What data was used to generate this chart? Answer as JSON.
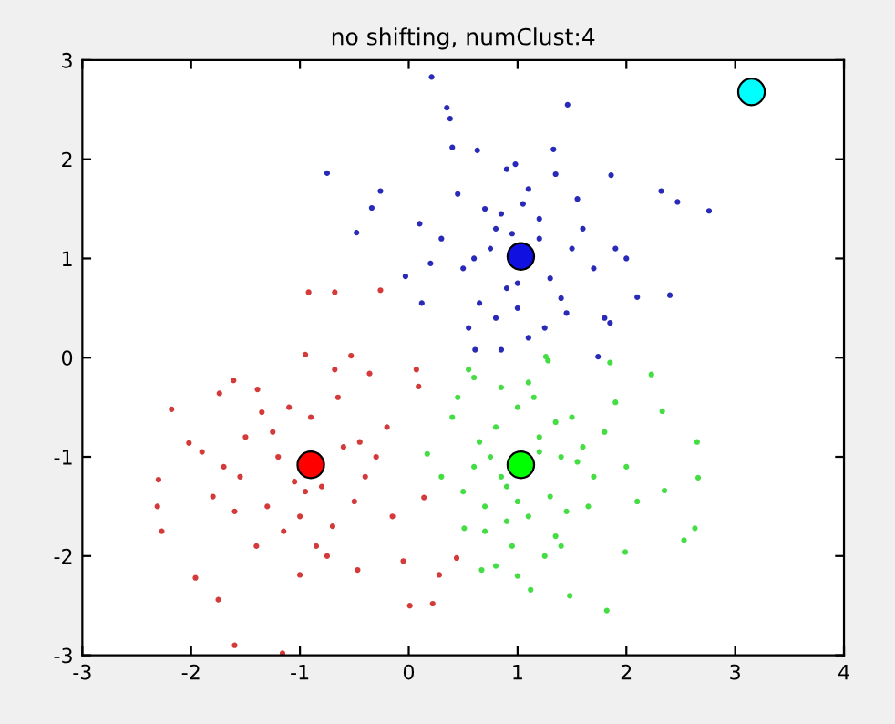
{
  "chart_data": {
    "type": "scatter",
    "title": "no shifting, numClust:4",
    "xlim": [
      -3,
      4
    ],
    "ylim": [
      -3,
      3
    ],
    "xticks": [
      -3,
      -2,
      -1,
      0,
      1,
      2,
      3,
      4
    ],
    "yticks": [
      -3,
      -2,
      -1,
      0,
      1,
      2,
      3
    ],
    "grid": false,
    "legend": false,
    "marker": "circle",
    "series": [
      {
        "color": "#2a2ab8",
        "x": [
          0.21,
          1.46,
          -0.75,
          0.35,
          0.38,
          2.76,
          2.47,
          2.32,
          2.4,
          -0.48,
          -0.34,
          -0.03,
          0.12,
          0.61,
          0.85,
          1.74,
          2.1,
          1.86,
          1.33,
          0.4,
          0.63,
          0.98,
          -0.26,
          1.85,
          0.8,
          1.2,
          1.5,
          0.6,
          0.9,
          1.1,
          1.3,
          0.7,
          1.6,
          0.5,
          1.0,
          1.4,
          0.3,
          1.7,
          0.9,
          1.2,
          0.8,
          1.05,
          0.45,
          1.55,
          1.9,
          0.2,
          0.75,
          1.25,
          1.0,
          1.35,
          0.65,
          0.95,
          1.45,
          0.55,
          1.8,
          0.1,
          2.0,
          1.1,
          0.85
        ],
        "values": [
          2.83,
          2.55,
          1.86,
          2.52,
          2.41,
          1.48,
          1.57,
          1.68,
          0.63,
          1.26,
          1.51,
          0.82,
          0.55,
          0.08,
          0.08,
          0.01,
          0.61,
          1.84,
          2.1,
          2.12,
          2.09,
          1.95,
          1.68,
          0.35,
          1.3,
          1.4,
          1.1,
          1.0,
          0.7,
          1.7,
          0.8,
          1.5,
          1.3,
          0.9,
          0.5,
          0.6,
          1.2,
          0.9,
          1.9,
          1.2,
          0.4,
          1.55,
          1.65,
          1.6,
          1.1,
          0.95,
          1.1,
          0.3,
          0.75,
          1.85,
          0.55,
          1.25,
          0.45,
          0.3,
          0.4,
          1.35,
          1.0,
          0.2,
          1.45
        ]
      },
      {
        "color": "#d43a3a",
        "x": [
          -2.3,
          -2.27,
          -2.31,
          -2.18,
          -2.02,
          -1.96,
          -1.75,
          -1.6,
          -1.16,
          -1.0,
          -1.61,
          -1.74,
          -1.39,
          -0.95,
          -0.68,
          -0.36,
          -0.53,
          -0.47,
          -0.05,
          0.01,
          0.22,
          0.07,
          0.09,
          0.14,
          0.44,
          0.28,
          -0.92,
          -0.68,
          -0.26,
          -1.2,
          -0.8,
          -1.5,
          -0.6,
          -1.0,
          -1.3,
          -0.4,
          -1.7,
          -0.9,
          -1.1,
          -0.7,
          -1.4,
          -0.2,
          -1.8,
          -0.5,
          -1.25,
          -0.85,
          -1.55,
          -0.3,
          -1.05,
          -0.65,
          -1.35,
          -0.15,
          -1.9,
          -0.75,
          -1.15,
          -0.45,
          -1.6,
          -0.95
        ],
        "values": [
          -1.23,
          -1.75,
          -1.5,
          -0.52,
          -0.86,
          -2.22,
          -2.44,
          -2.9,
          -2.98,
          -2.19,
          -0.23,
          -0.36,
          -0.32,
          0.03,
          -0.12,
          -0.16,
          0.02,
          -2.14,
          -2.05,
          -2.5,
          -2.48,
          -0.12,
          -0.29,
          -1.41,
          -2.02,
          -2.19,
          0.66,
          0.66,
          0.68,
          -1.0,
          -1.3,
          -0.8,
          -0.9,
          -1.6,
          -1.5,
          -1.2,
          -1.1,
          -0.6,
          -0.5,
          -1.7,
          -1.9,
          -0.7,
          -1.4,
          -1.45,
          -0.75,
          -1.9,
          -1.2,
          -1.0,
          -1.25,
          -0.4,
          -0.55,
          -1.6,
          -0.95,
          -2.0,
          -1.75,
          -0.85,
          -1.55,
          -1.35
        ]
      },
      {
        "color": "#44dd44",
        "x": [
          2.65,
          2.66,
          2.63,
          2.53,
          2.35,
          2.33,
          2.23,
          1.82,
          1.48,
          1.12,
          0.67,
          0.51,
          0.17,
          0.55,
          1.28,
          1.85,
          1.99,
          1.26,
          1.0,
          0.8,
          1.2,
          1.4,
          0.6,
          0.9,
          1.6,
          0.7,
          1.1,
          1.3,
          0.4,
          1.7,
          0.85,
          1.15,
          0.95,
          1.5,
          0.75,
          1.35,
          0.5,
          1.8,
          0.65,
          1.25,
          2.0,
          0.3,
          1.45,
          0.9,
          1.1,
          1.55,
          0.7,
          1.0,
          1.9,
          0.45,
          1.2,
          0.8,
          1.65,
          1.35,
          2.1,
          0.6,
          1.0,
          1.4,
          0.85
        ],
        "values": [
          -0.85,
          -1.21,
          -1.72,
          -1.84,
          -1.34,
          -0.54,
          -0.17,
          -2.55,
          -2.4,
          -2.34,
          -2.14,
          -1.72,
          -0.97,
          -0.12,
          -0.03,
          -0.05,
          -1.96,
          0.01,
          -0.5,
          -0.7,
          -0.8,
          -1.0,
          -1.1,
          -1.3,
          -0.9,
          -1.5,
          -1.6,
          -1.4,
          -0.6,
          -1.2,
          -0.3,
          -0.4,
          -1.9,
          -0.6,
          -1.0,
          -1.8,
          -1.35,
          -0.75,
          -0.85,
          -2.0,
          -1.1,
          -1.2,
          -1.55,
          -1.65,
          -0.25,
          -1.05,
          -1.75,
          -1.45,
          -0.45,
          -0.4,
          -0.95,
          -2.1,
          -1.5,
          -0.65,
          -1.45,
          -0.2,
          -2.2,
          -1.9,
          -1.2
        ]
      },
      {
        "type": "bubble",
        "x": [
          1.03,
          -0.9,
          1.03,
          3.15
        ],
        "values": [
          1.02,
          -1.08,
          -1.08,
          2.68
        ],
        "sizes": [
          1,
          1,
          1,
          1
        ],
        "colors": [
          "#1010e0",
          "#ff0000",
          "#00ff00",
          "#00ffff"
        ]
      }
    ]
  }
}
